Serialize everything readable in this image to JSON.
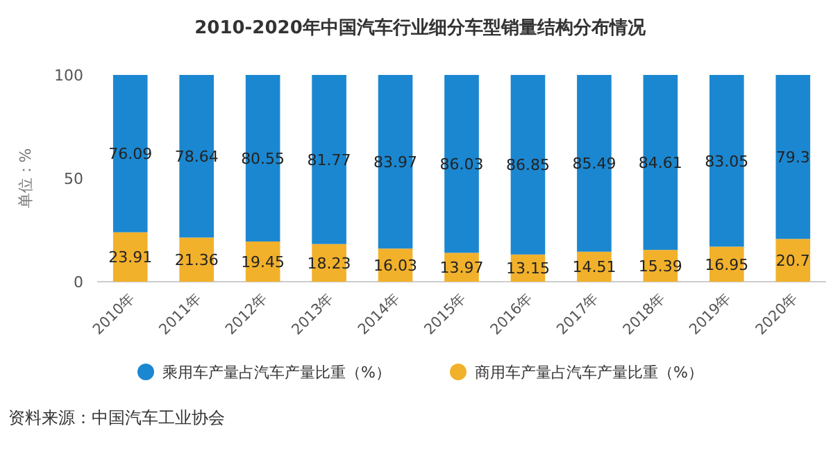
{
  "chart_data": {
    "type": "bar",
    "title": "2010-2020年中国汽车行业细分车型销量结构分布情况",
    "ylabel": "单位：%",
    "categories": [
      "2010年",
      "2011年",
      "2012年",
      "2013年",
      "2014年",
      "2015年",
      "2016年",
      "2017年",
      "2018年",
      "2019年",
      "2020年"
    ],
    "series": [
      {
        "name": "商用车产量占汽车产量比重（%）",
        "color": "#f2b12b",
        "values": [
          23.91,
          21.36,
          19.45,
          18.23,
          16.03,
          13.97,
          13.15,
          14.51,
          15.39,
          16.95,
          20.7
        ]
      },
      {
        "name": "乘用车产量占汽车产量比重（%）",
        "color": "#1b87d0",
        "values": [
          76.09,
          78.64,
          80.55,
          81.77,
          83.97,
          86.03,
          86.85,
          85.49,
          84.61,
          83.05,
          79.3
        ]
      }
    ],
    "stacked": true,
    "ylim": [
      0,
      100
    ],
    "yticks": [
      0,
      50,
      100
    ],
    "data_labels": true,
    "legend": "bottom",
    "annotations": [
      "资料来源：中国汽车工业协会"
    ]
  }
}
